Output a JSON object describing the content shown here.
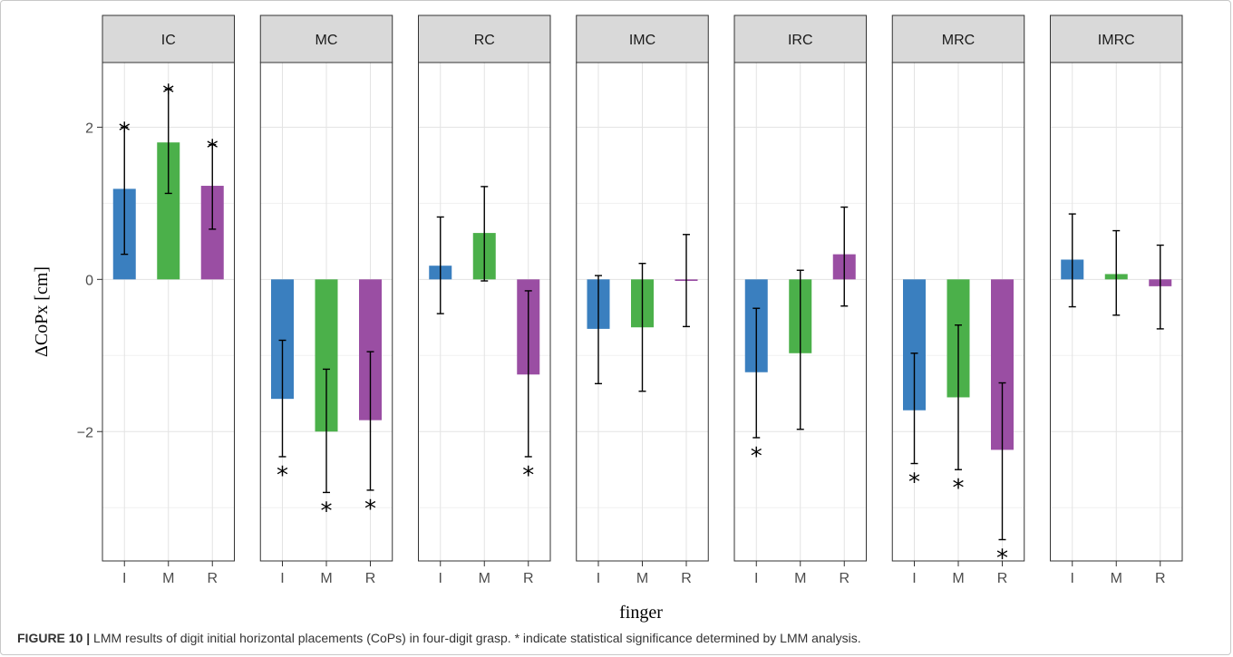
{
  "caption": {
    "label": "FIGURE 10 |",
    "text": " LMM results of digit initial horizontal placements (CoPs) in four-digit grasp. * indicate statistical significance determined by LMM analysis."
  },
  "chart_data": {
    "type": "bar",
    "facets": [
      "IC",
      "MC",
      "RC",
      "IMC",
      "IRC",
      "MRC",
      "IMRC"
    ],
    "categories": [
      "I",
      "M",
      "R"
    ],
    "xlabel": "finger",
    "ylabel": "ΔCoPx [cm]",
    "ylim": [
      -3.7,
      2.85
    ],
    "yticks": [
      -2,
      0,
      2
    ],
    "grid": true,
    "significance_marker": "*",
    "colors": {
      "I": "#3a7fbf",
      "M": "#4bb04a",
      "R": "#9a4ea3"
    },
    "panels": [
      {
        "facet": "IC",
        "values": [
          1.19,
          1.8,
          1.23
        ],
        "lower": [
          0.33,
          1.13,
          0.66
        ],
        "upper": [
          2.0,
          2.5,
          1.77
        ],
        "significant": [
          true,
          true,
          true
        ]
      },
      {
        "facet": "MC",
        "values": [
          -1.57,
          -2.0,
          -1.85
        ],
        "lower": [
          -2.33,
          -2.8,
          -2.77
        ],
        "upper": [
          -0.8,
          -1.18,
          -0.95
        ],
        "significant": [
          true,
          true,
          true
        ]
      },
      {
        "facet": "RC",
        "values": [
          0.18,
          0.61,
          -1.25
        ],
        "lower": [
          -0.45,
          -0.02,
          -2.33
        ],
        "upper": [
          0.82,
          1.22,
          -0.15
        ],
        "significant": [
          false,
          false,
          true
        ]
      },
      {
        "facet": "IMC",
        "values": [
          -0.65,
          -0.63,
          -0.02
        ],
        "lower": [
          -1.37,
          -1.47,
          -0.62
        ],
        "upper": [
          0.05,
          0.21,
          0.59
        ],
        "significant": [
          false,
          false,
          false
        ]
      },
      {
        "facet": "IRC",
        "values": [
          -1.22,
          -0.97,
          0.33
        ],
        "lower": [
          -2.08,
          -1.97,
          -0.35
        ],
        "upper": [
          -0.38,
          0.12,
          0.95
        ],
        "significant": [
          true,
          false,
          false
        ]
      },
      {
        "facet": "MRC",
        "values": [
          -1.72,
          -1.55,
          -2.24
        ],
        "lower": [
          -2.42,
          -2.5,
          -3.42
        ],
        "upper": [
          -0.97,
          -0.6,
          -1.36
        ],
        "significant": [
          true,
          true,
          true
        ]
      },
      {
        "facet": "IMRC",
        "values": [
          0.26,
          0.07,
          -0.09
        ],
        "lower": [
          -0.36,
          -0.47,
          -0.65
        ],
        "upper": [
          0.86,
          0.64,
          0.45
        ],
        "significant": [
          false,
          false,
          false
        ]
      }
    ]
  }
}
